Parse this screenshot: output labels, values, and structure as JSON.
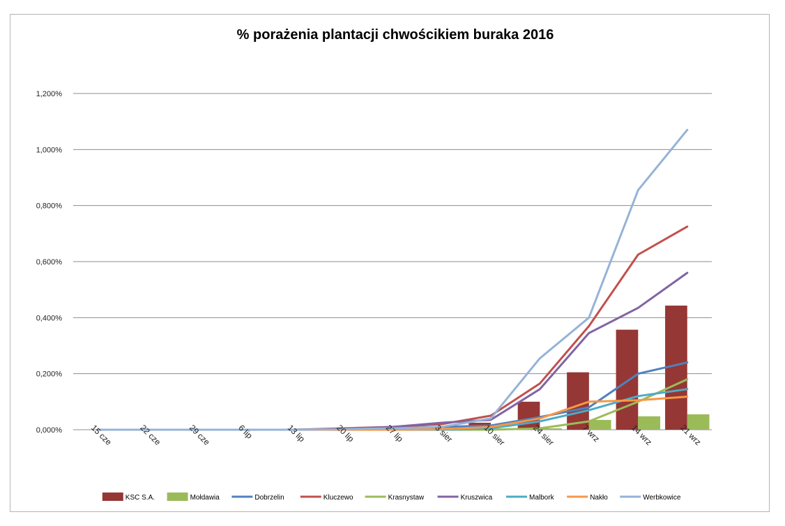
{
  "chart_data": {
    "type": "bar+line",
    "title": "%  porażenia plantacji chwościkiem buraka 2016",
    "xlabel": "",
    "ylabel": "",
    "categories": [
      "15 cze",
      "22 cze",
      "29 cze",
      "6 lip",
      "13 lip",
      "20 lip",
      "27 lip",
      "3 sier",
      "10 sier",
      "24 sier",
      "7 wrz",
      "14 wrz",
      "21 wrz"
    ],
    "y_ticks": [
      "0,000%",
      "0,200%",
      "0,400%",
      "0,600%",
      "0,800%",
      "1,000%",
      "1,200%"
    ],
    "ylim": [
      0,
      1.2
    ],
    "grid": true,
    "legend_position": "bottom",
    "series": [
      {
        "name": "KSC S.A.",
        "kind": "bar",
        "color": "#953735",
        "values": [
          0,
          0,
          0,
          0.002,
          0.003,
          0.003,
          0.005,
          0.008,
          0.025,
          0.1,
          0.205,
          0.357,
          0.443
        ]
      },
      {
        "name": "Mołdawia",
        "kind": "bar",
        "color": "#9bbb59",
        "values": [
          0,
          0,
          0,
          0,
          0,
          0,
          0,
          0,
          0,
          0.005,
          0.035,
          0.048,
          0.055
        ]
      },
      {
        "name": "Dobrzelin",
        "kind": "line",
        "color": "#4f81bd",
        "values": [
          0,
          0,
          0,
          0,
          0,
          0.002,
          0.005,
          0.01,
          0.015,
          0.045,
          0.08,
          0.2,
          0.24
        ]
      },
      {
        "name": "Kluczewo",
        "kind": "line",
        "color": "#c0504d",
        "values": [
          0,
          0,
          0,
          0,
          0,
          0.005,
          0.01,
          0.02,
          0.05,
          0.165,
          0.37,
          0.625,
          0.725
        ]
      },
      {
        "name": "Krasnystaw",
        "kind": "line",
        "color": "#9bbb59",
        "values": [
          0,
          0,
          0,
          0,
          0,
          0,
          0,
          0,
          0,
          0.005,
          0.03,
          0.1,
          0.18
        ]
      },
      {
        "name": "Kruszwica",
        "kind": "line",
        "color": "#8064a2",
        "values": [
          0,
          0,
          0,
          0,
          0,
          0.003,
          0.01,
          0.025,
          0.035,
          0.145,
          0.345,
          0.435,
          0.56
        ]
      },
      {
        "name": "Malbork",
        "kind": "line",
        "color": "#4bacc6",
        "values": [
          0,
          0,
          0,
          0,
          0,
          0,
          0,
          0,
          0.005,
          0.03,
          0.07,
          0.12,
          0.145
        ]
      },
      {
        "name": "Nakło",
        "kind": "line",
        "color": "#f79646",
        "values": [
          0,
          0,
          0,
          0,
          0,
          0,
          0,
          0.002,
          0.01,
          0.04,
          0.1,
          0.105,
          0.118
        ]
      },
      {
        "name": "Werbkowice",
        "kind": "line",
        "color": "#95b3d7",
        "values": [
          0,
          0,
          0,
          0,
          0,
          0.002,
          0.005,
          0.01,
          0.04,
          0.255,
          0.4,
          0.855,
          1.07
        ]
      }
    ]
  }
}
